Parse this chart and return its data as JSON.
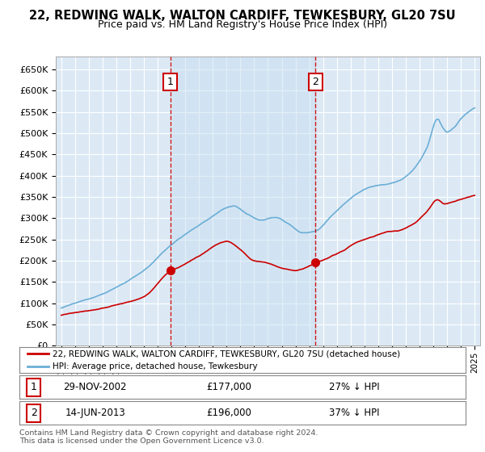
{
  "title": "22, REDWING WALK, WALTON CARDIFF, TEWKESBURY, GL20 7SU",
  "subtitle": "Price paid vs. HM Land Registry's House Price Index (HPI)",
  "ylim": [
    0,
    680000
  ],
  "yticks": [
    0,
    50000,
    100000,
    150000,
    200000,
    250000,
    300000,
    350000,
    400000,
    450000,
    500000,
    550000,
    600000,
    650000
  ],
  "ytick_labels": [
    "£0",
    "£50K",
    "£100K",
    "£150K",
    "£200K",
    "£250K",
    "£300K",
    "£350K",
    "£400K",
    "£450K",
    "£500K",
    "£550K",
    "£600K",
    "£650K"
  ],
  "background_color": "#ffffff",
  "plot_bg_color": "#dce9f5",
  "shade_color": "#c8dff0",
  "grid_color": "#ffffff",
  "hpi_color": "#6baed6",
  "price_color": "#cc0000",
  "marker1_date": 2002.91,
  "marker1_price": 177000,
  "marker2_date": 2013.45,
  "marker2_price": 196000,
  "legend_line1": "22, REDWING WALK, WALTON CARDIFF, TEWKESBURY, GL20 7SU (detached house)",
  "legend_line2": "HPI: Average price, detached house, Tewkesbury",
  "table_row1_num": "1",
  "table_row1_date": "29-NOV-2002",
  "table_row1_price": "£177,000",
  "table_row1_hpi": "27% ↓ HPI",
  "table_row2_num": "2",
  "table_row2_date": "14-JUN-2013",
  "table_row2_price": "£196,000",
  "table_row2_hpi": "37% ↓ HPI",
  "footer": "Contains HM Land Registry data © Crown copyright and database right 2024.\nThis data is licensed under the Open Government Licence v3.0."
}
